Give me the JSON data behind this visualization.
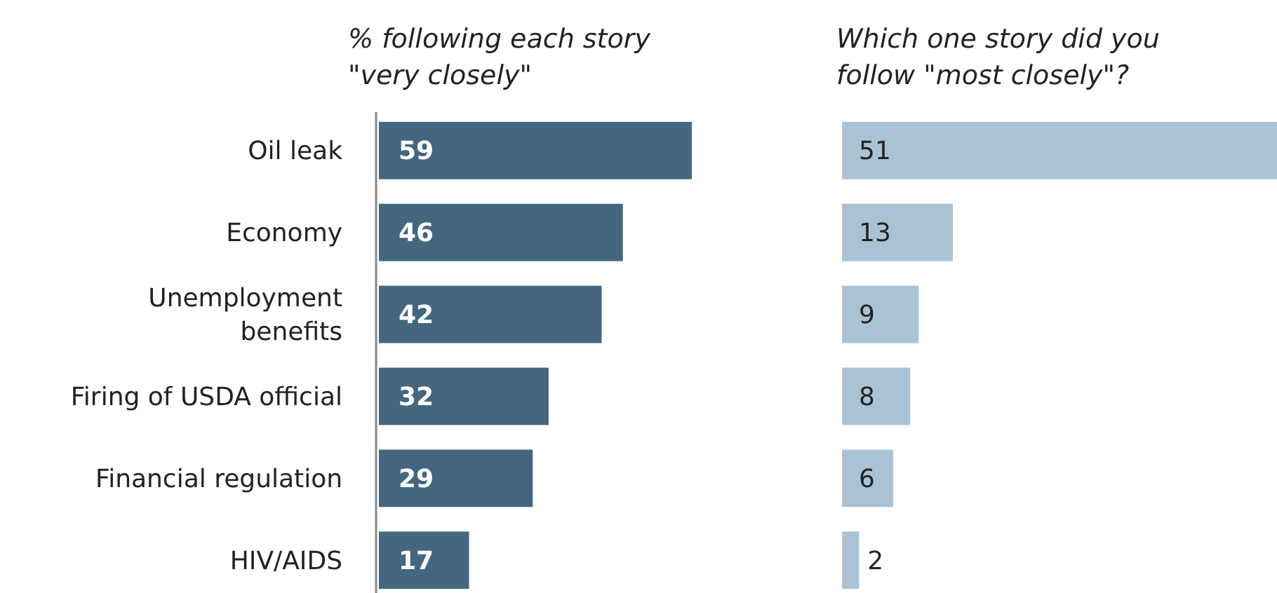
{
  "chart_data": [
    {
      "type": "bar",
      "orientation": "horizontal",
      "title": "% following each story \"very closely\"",
      "categories": [
        "Oil leak",
        "Economy",
        "Unemployment benefits",
        "Firing of USDA official",
        "Financial regulation",
        "HIV/AIDS"
      ],
      "values": [
        59,
        46,
        42,
        32,
        29,
        17
      ],
      "color": "#44677f",
      "data_labels": true
    },
    {
      "type": "bar",
      "orientation": "horizontal",
      "title": "Which one story did you follow \"most closely\"?",
      "categories": [
        null,
        null,
        null,
        null,
        null,
        null
      ],
      "values": [
        51,
        13,
        9,
        8,
        6,
        2
      ],
      "color": "#a9c3d5",
      "data_labels": true
    }
  ]
}
